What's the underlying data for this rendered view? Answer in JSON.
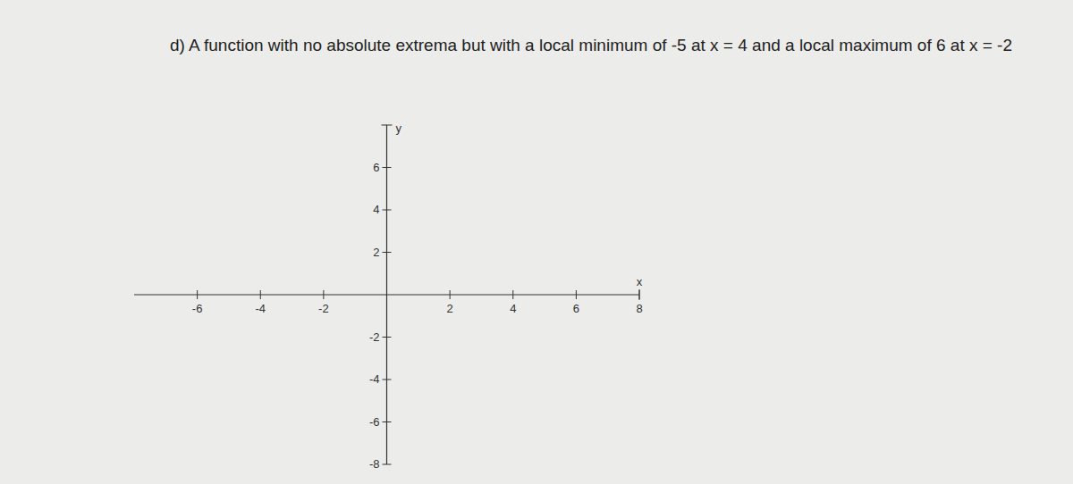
{
  "chart_data": {
    "type": "line",
    "title": "d) A function with no absolute extrema but with a local minimum of -5 at x = 4 and a local maximum of 6 at x = -2",
    "x_label": "x",
    "y_label": "y",
    "xlim": [
      -8,
      8
    ],
    "ylim": [
      -8,
      8
    ],
    "xticks": [
      -6,
      -4,
      -2,
      2,
      4,
      6,
      8
    ],
    "yticks": [
      -8,
      -6,
      -4,
      -2,
      2,
      4,
      6
    ],
    "grid": false
  }
}
